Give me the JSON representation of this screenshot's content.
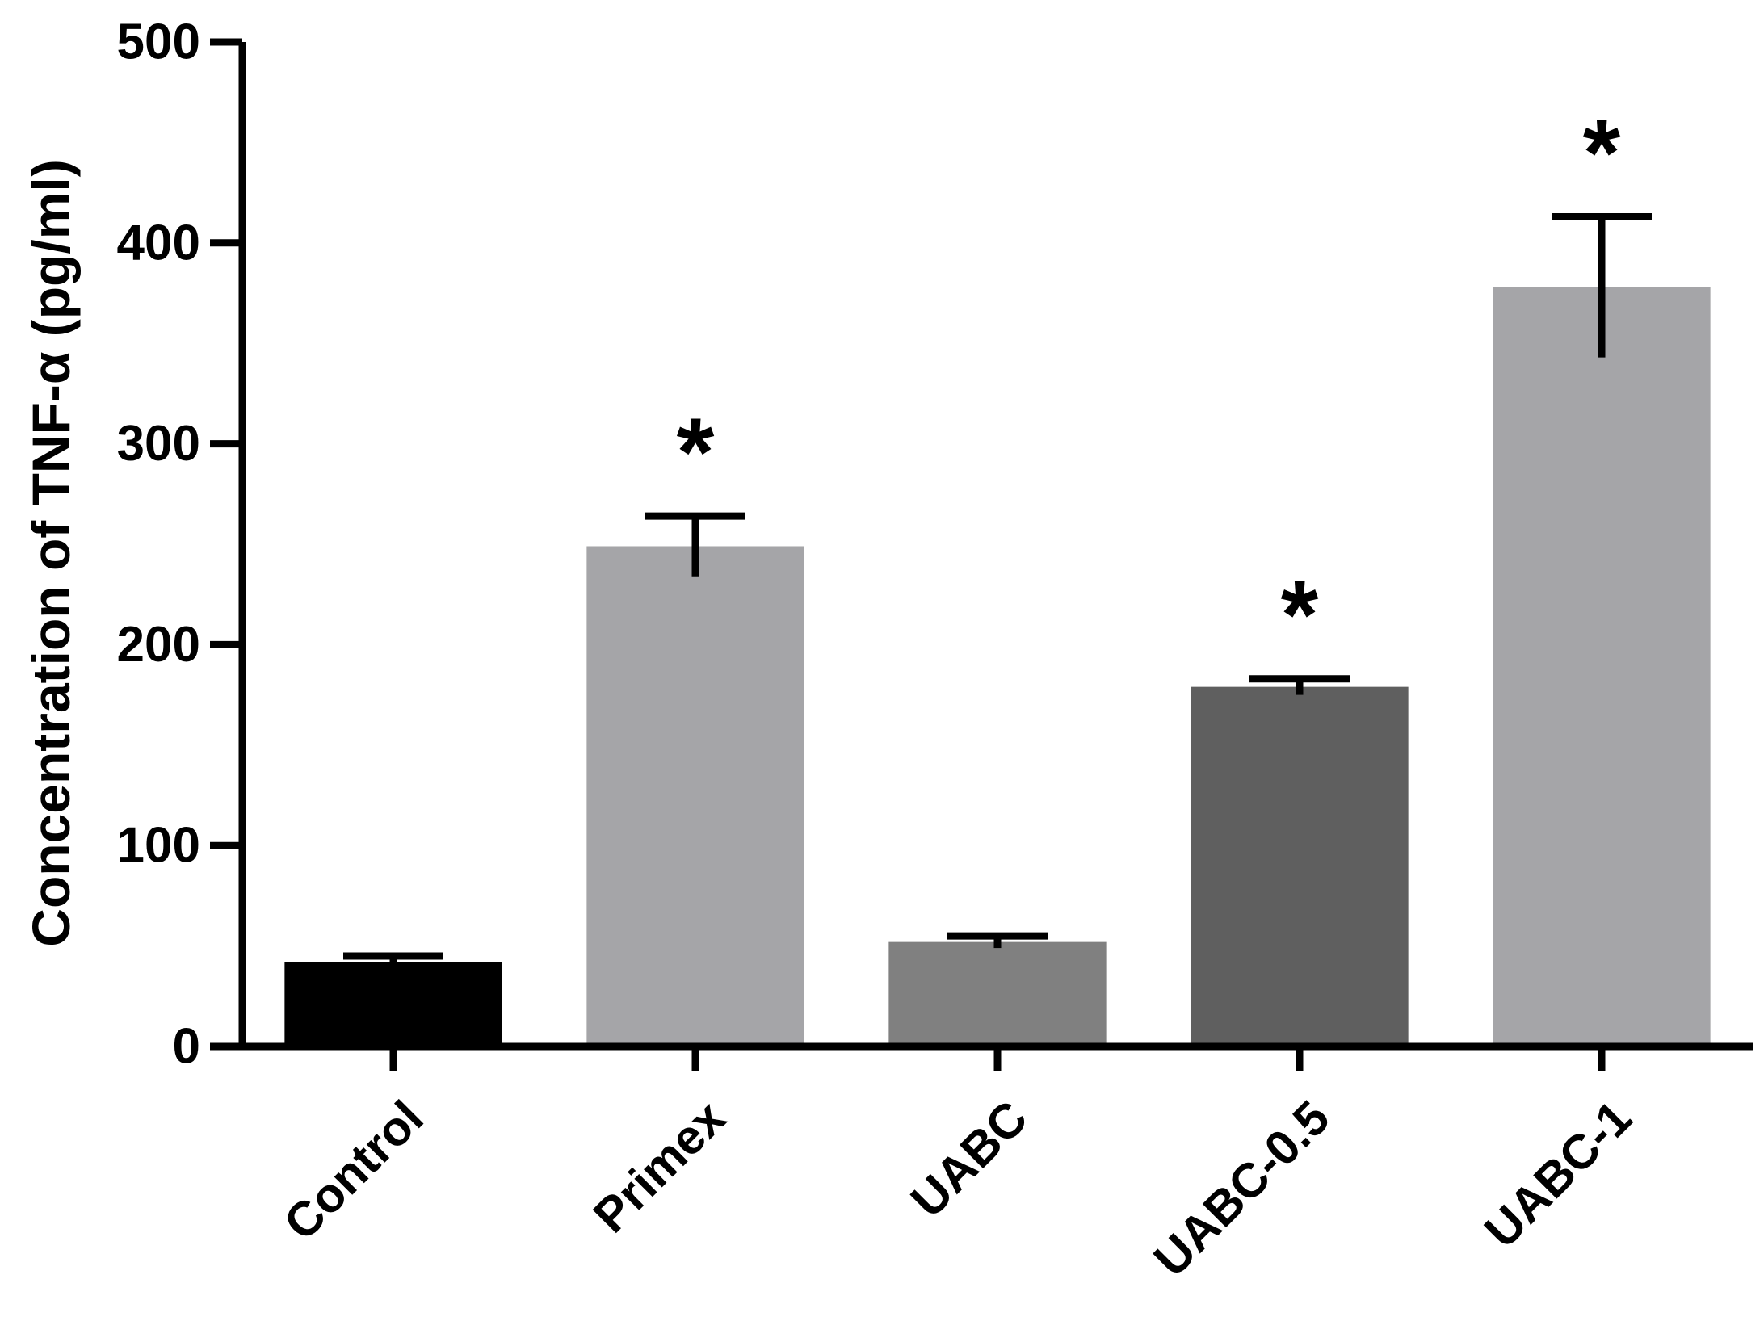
{
  "chart_data": {
    "type": "bar",
    "title": "",
    "xlabel": "",
    "ylabel": "Concentration of TNF-α (pg/ml)",
    "ylim": [
      0,
      500
    ],
    "yticks": [
      0,
      100,
      200,
      300,
      400,
      500
    ],
    "grid": false,
    "legend": "none",
    "categories": [
      "Control",
      "Primex",
      "UABC",
      "UABC-0.5",
      "UABC-1"
    ],
    "values": [
      42,
      249,
      52,
      179,
      378
    ],
    "errors": [
      3,
      15,
      3,
      4,
      35
    ],
    "significance": [
      "",
      "*",
      "",
      "*",
      "*"
    ],
    "bar_colors": [
      "#000000",
      "#a5a5a8",
      "#808080",
      "#5f5f5f",
      "#a5a5a8"
    ],
    "axis_color": "#000000"
  }
}
